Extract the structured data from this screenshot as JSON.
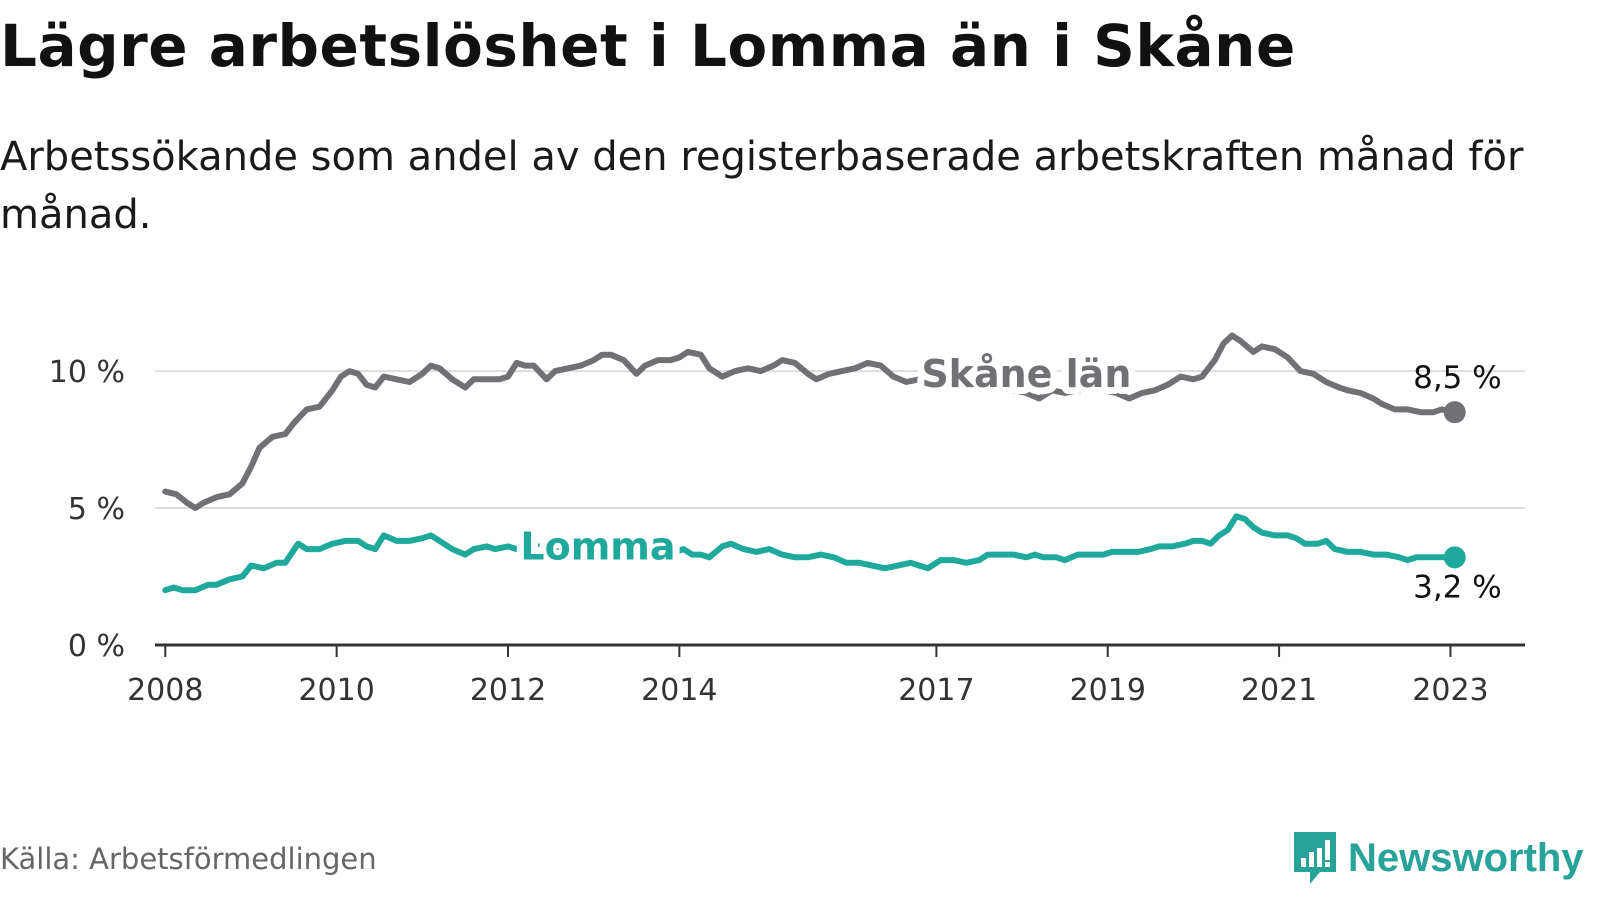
{
  "title": "Lägre arbetslöshet i Lomma än i Skåne",
  "subtitle": "Arbetssökande som andel av den registerbaserade arbetskraften månad för månad.",
  "source": "Källa: Arbetsförmedlingen",
  "brand": {
    "name": "Newsworthy",
    "icon": "newsworthy-logo-icon"
  },
  "colors": {
    "skane": "#707075",
    "lomma": "#1fa99c",
    "grid": "#dddddd",
    "axis": "#333333",
    "brand": "#27a39a"
  },
  "chart_data": {
    "type": "line",
    "ylim": [
      0,
      11.5
    ],
    "xlim": [
      2007.88,
      2023.87
    ],
    "y_ticks": [
      {
        "value": 0,
        "label": "0 %"
      },
      {
        "value": 5,
        "label": "5 %"
      },
      {
        "value": 10,
        "label": "10 %"
      }
    ],
    "x_ticks": [
      {
        "value": 2008,
        "label": "2008"
      },
      {
        "value": 2010,
        "label": "2010"
      },
      {
        "value": 2012,
        "label": "2012"
      },
      {
        "value": 2014,
        "label": "2014"
      },
      {
        "value": 2017,
        "label": "2017"
      },
      {
        "value": 2019,
        "label": "2019"
      },
      {
        "value": 2021,
        "label": "2021"
      },
      {
        "value": 2023,
        "label": "2023"
      }
    ],
    "series": [
      {
        "name": "Skåne län",
        "color_key": "skane",
        "end_label": "8,5 %",
        "points": [
          [
            2008.0,
            5.6
          ],
          [
            2008.13,
            5.5
          ],
          [
            2008.25,
            5.2
          ],
          [
            2008.35,
            5.0
          ],
          [
            2008.45,
            5.2
          ],
          [
            2008.6,
            5.4
          ],
          [
            2008.75,
            5.5
          ],
          [
            2008.9,
            5.9
          ],
          [
            2009.0,
            6.5
          ],
          [
            2009.1,
            7.2
          ],
          [
            2009.25,
            7.6
          ],
          [
            2009.4,
            7.7
          ],
          [
            2009.5,
            8.1
          ],
          [
            2009.65,
            8.6
          ],
          [
            2009.8,
            8.7
          ],
          [
            2009.95,
            9.3
          ],
          [
            2010.05,
            9.8
          ],
          [
            2010.15,
            10.0
          ],
          [
            2010.25,
            9.9
          ],
          [
            2010.35,
            9.5
          ],
          [
            2010.45,
            9.4
          ],
          [
            2010.55,
            9.8
          ],
          [
            2010.7,
            9.7
          ],
          [
            2010.85,
            9.6
          ],
          [
            2011.0,
            9.9
          ],
          [
            2011.1,
            10.2
          ],
          [
            2011.2,
            10.1
          ],
          [
            2011.35,
            9.7
          ],
          [
            2011.5,
            9.4
          ],
          [
            2011.6,
            9.7
          ],
          [
            2011.75,
            9.7
          ],
          [
            2011.9,
            9.7
          ],
          [
            2012.0,
            9.8
          ],
          [
            2012.1,
            10.3
          ],
          [
            2012.2,
            10.2
          ],
          [
            2012.3,
            10.2
          ],
          [
            2012.45,
            9.7
          ],
          [
            2012.55,
            10.0
          ],
          [
            2012.7,
            10.1
          ],
          [
            2012.85,
            10.2
          ],
          [
            2013.0,
            10.4
          ],
          [
            2013.1,
            10.6
          ],
          [
            2013.2,
            10.6
          ],
          [
            2013.35,
            10.4
          ],
          [
            2013.5,
            9.9
          ],
          [
            2013.6,
            10.2
          ],
          [
            2013.75,
            10.4
          ],
          [
            2013.9,
            10.4
          ],
          [
            2014.0,
            10.5
          ],
          [
            2014.1,
            10.7
          ],
          [
            2014.25,
            10.6
          ],
          [
            2014.35,
            10.1
          ],
          [
            2014.5,
            9.8
          ],
          [
            2014.65,
            10.0
          ],
          [
            2014.8,
            10.1
          ],
          [
            2014.95,
            10.0
          ],
          [
            2015.1,
            10.2
          ],
          [
            2015.2,
            10.4
          ],
          [
            2015.35,
            10.3
          ],
          [
            2015.5,
            9.9
          ],
          [
            2015.6,
            9.7
          ],
          [
            2015.75,
            9.9
          ],
          [
            2015.9,
            10.0
          ],
          [
            2016.05,
            10.1
          ],
          [
            2016.2,
            10.3
          ],
          [
            2016.35,
            10.2
          ],
          [
            2016.5,
            9.8
          ],
          [
            2016.65,
            9.6
          ],
          [
            2016.8,
            9.7
          ],
          [
            2016.95,
            9.8
          ],
          [
            2017.1,
            9.7
          ],
          [
            2017.3,
            9.6
          ],
          [
            2017.5,
            9.5
          ],
          [
            2017.7,
            9.4
          ],
          [
            2017.9,
            9.3
          ],
          [
            2018.05,
            9.2
          ],
          [
            2018.2,
            9.0
          ],
          [
            2018.35,
            9.3
          ],
          [
            2018.5,
            9.2
          ],
          [
            2018.65,
            9.3
          ],
          [
            2018.8,
            9.3
          ],
          [
            2018.95,
            9.3
          ],
          [
            2019.1,
            9.2
          ],
          [
            2019.25,
            9.0
          ],
          [
            2019.4,
            9.2
          ],
          [
            2019.55,
            9.3
          ],
          [
            2019.7,
            9.5
          ],
          [
            2019.85,
            9.8
          ],
          [
            2020.0,
            9.7
          ],
          [
            2020.1,
            9.8
          ],
          [
            2020.25,
            10.4
          ],
          [
            2020.35,
            11.0
          ],
          [
            2020.45,
            11.3
          ],
          [
            2020.55,
            11.1
          ],
          [
            2020.7,
            10.7
          ],
          [
            2020.8,
            10.9
          ],
          [
            2020.95,
            10.8
          ],
          [
            2021.1,
            10.5
          ],
          [
            2021.25,
            10.0
          ],
          [
            2021.4,
            9.9
          ],
          [
            2021.55,
            9.6
          ],
          [
            2021.7,
            9.4
          ],
          [
            2021.8,
            9.3
          ],
          [
            2021.95,
            9.2
          ],
          [
            2022.1,
            9.0
          ],
          [
            2022.2,
            8.8
          ],
          [
            2022.35,
            8.6
          ],
          [
            2022.5,
            8.6
          ],
          [
            2022.65,
            8.5
          ],
          [
            2022.8,
            8.5
          ],
          [
            2022.9,
            8.6
          ],
          [
            2023.05,
            8.5
          ]
        ]
      },
      {
        "name": "Lomma",
        "color_key": "lomma",
        "end_label": "3,2 %",
        "points": [
          [
            2008.0,
            2.0
          ],
          [
            2008.1,
            2.1
          ],
          [
            2008.2,
            2.0
          ],
          [
            2008.35,
            2.0
          ],
          [
            2008.5,
            2.2
          ],
          [
            2008.6,
            2.2
          ],
          [
            2008.75,
            2.4
          ],
          [
            2008.9,
            2.5
          ],
          [
            2009.0,
            2.9
          ],
          [
            2009.15,
            2.8
          ],
          [
            2009.3,
            3.0
          ],
          [
            2009.4,
            3.0
          ],
          [
            2009.55,
            3.7
          ],
          [
            2009.65,
            3.5
          ],
          [
            2009.8,
            3.5
          ],
          [
            2009.95,
            3.7
          ],
          [
            2010.1,
            3.8
          ],
          [
            2010.25,
            3.8
          ],
          [
            2010.35,
            3.6
          ],
          [
            2010.45,
            3.5
          ],
          [
            2010.55,
            4.0
          ],
          [
            2010.7,
            3.8
          ],
          [
            2010.85,
            3.8
          ],
          [
            2011.0,
            3.9
          ],
          [
            2011.1,
            4.0
          ],
          [
            2011.2,
            3.8
          ],
          [
            2011.35,
            3.5
          ],
          [
            2011.5,
            3.3
          ],
          [
            2011.6,
            3.5
          ],
          [
            2011.75,
            3.6
          ],
          [
            2011.85,
            3.5
          ],
          [
            2012.0,
            3.6
          ],
          [
            2012.1,
            3.5
          ],
          [
            2012.2,
            3.6
          ],
          [
            2012.35,
            3.6
          ],
          [
            2012.6,
            3.5
          ],
          [
            2012.85,
            3.6
          ],
          [
            2013.1,
            3.5
          ],
          [
            2013.4,
            3.5
          ],
          [
            2013.7,
            3.5
          ],
          [
            2013.95,
            3.4
          ],
          [
            2014.05,
            3.5
          ],
          [
            2014.15,
            3.3
          ],
          [
            2014.25,
            3.3
          ],
          [
            2014.35,
            3.2
          ],
          [
            2014.5,
            3.6
          ],
          [
            2014.6,
            3.7
          ],
          [
            2014.75,
            3.5
          ],
          [
            2014.9,
            3.4
          ],
          [
            2015.05,
            3.5
          ],
          [
            2015.2,
            3.3
          ],
          [
            2015.35,
            3.2
          ],
          [
            2015.5,
            3.2
          ],
          [
            2015.65,
            3.3
          ],
          [
            2015.8,
            3.2
          ],
          [
            2015.95,
            3.0
          ],
          [
            2016.1,
            3.0
          ],
          [
            2016.25,
            2.9
          ],
          [
            2016.4,
            2.8
          ],
          [
            2016.55,
            2.9
          ],
          [
            2016.7,
            3.0
          ],
          [
            2016.8,
            2.9
          ],
          [
            2016.9,
            2.8
          ],
          [
            2017.05,
            3.1
          ],
          [
            2017.2,
            3.1
          ],
          [
            2017.35,
            3.0
          ],
          [
            2017.5,
            3.1
          ],
          [
            2017.6,
            3.3
          ],
          [
            2017.75,
            3.3
          ],
          [
            2017.9,
            3.3
          ],
          [
            2018.05,
            3.2
          ],
          [
            2018.15,
            3.3
          ],
          [
            2018.25,
            3.2
          ],
          [
            2018.4,
            3.2
          ],
          [
            2018.5,
            3.1
          ],
          [
            2018.65,
            3.3
          ],
          [
            2018.8,
            3.3
          ],
          [
            2018.95,
            3.3
          ],
          [
            2019.05,
            3.4
          ],
          [
            2019.2,
            3.4
          ],
          [
            2019.35,
            3.4
          ],
          [
            2019.5,
            3.5
          ],
          [
            2019.6,
            3.6
          ],
          [
            2019.75,
            3.6
          ],
          [
            2019.9,
            3.7
          ],
          [
            2020.0,
            3.8
          ],
          [
            2020.1,
            3.8
          ],
          [
            2020.2,
            3.7
          ],
          [
            2020.3,
            4.0
          ],
          [
            2020.4,
            4.2
          ],
          [
            2020.5,
            4.7
          ],
          [
            2020.6,
            4.6
          ],
          [
            2020.7,
            4.3
          ],
          [
            2020.8,
            4.1
          ],
          [
            2020.95,
            4.0
          ],
          [
            2021.1,
            4.0
          ],
          [
            2021.2,
            3.9
          ],
          [
            2021.3,
            3.7
          ],
          [
            2021.45,
            3.7
          ],
          [
            2021.55,
            3.8
          ],
          [
            2021.65,
            3.5
          ],
          [
            2021.8,
            3.4
          ],
          [
            2021.95,
            3.4
          ],
          [
            2022.1,
            3.3
          ],
          [
            2022.25,
            3.3
          ],
          [
            2022.4,
            3.2
          ],
          [
            2022.5,
            3.1
          ],
          [
            2022.6,
            3.2
          ],
          [
            2022.75,
            3.2
          ],
          [
            2022.9,
            3.2
          ],
          [
            2023.05,
            3.2
          ]
        ]
      }
    ],
    "inline_labels": [
      {
        "series": "Skåne län",
        "text": "Skåne län"
      },
      {
        "series": "Lomma",
        "text": "Lomma"
      }
    ]
  }
}
